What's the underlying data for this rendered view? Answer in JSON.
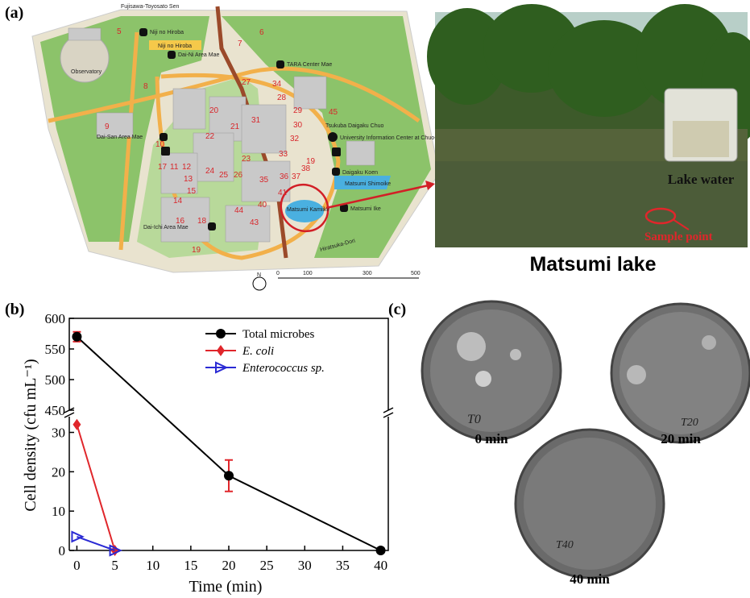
{
  "panel_labels": [
    "(a)",
    "(b)",
    "(c)"
  ],
  "map": {
    "labels": [
      "Fujisawa-Toyosato Sen",
      "Niji no Hiroba",
      "Niji no Hiroba",
      "Dai-Ni Area Mae",
      "TARA Center Mae",
      "Observatory",
      "Tsukuba Daigaku Chuo",
      "University Information Center at Chuo-guchi",
      "Dai-San Area Mae",
      "Daigaku Koen",
      "Matsumi Shimoike",
      "Matsumi Ike",
      "Matsumi Kamiike",
      "Dai-Ichi Area Mae",
      "Hiratsuka-Dori"
    ],
    "building_numbers": [
      "5",
      "6",
      "7",
      "8",
      "9",
      "27",
      "34",
      "28",
      "20",
      "21",
      "31",
      "29",
      "30",
      "45",
      "22",
      "32",
      "19",
      "23",
      "33",
      "38",
      "17",
      "11",
      "12",
      "13",
      "10",
      "24",
      "25",
      "26",
      "35",
      "36",
      "37",
      "14",
      "15",
      "16",
      "18",
      "40",
      "41",
      "44",
      "43",
      "19"
    ],
    "scale_labels": [
      "0",
      "100",
      "300",
      "500"
    ],
    "north": "N"
  },
  "photo": {
    "inset_label": "Lake water",
    "sample_label": "Sample point",
    "caption": "Matsumi lake"
  },
  "chart_data": {
    "type": "line",
    "x_label": "Time (min)",
    "y_label": "Cell density (cfu mL⁻¹)",
    "xlim": [
      -1,
      41
    ],
    "xticks": [
      0,
      5,
      10,
      15,
      20,
      25,
      30,
      35,
      40
    ],
    "ylim": [
      0,
      600
    ],
    "axis_break": [
      34,
      450
    ],
    "yticks": [
      0,
      10,
      20,
      30,
      450,
      500,
      550,
      600
    ],
    "legend": "upper right",
    "series": [
      {
        "name": "Total microbes",
        "color": "#000000",
        "marker": "circle",
        "x": [
          0,
          20,
          40
        ],
        "values": [
          570,
          19,
          0
        ],
        "errors": [
          8,
          4,
          0
        ]
      },
      {
        "name": "E. coli",
        "color": "#e0262b",
        "marker": "diamond",
        "x": [
          0,
          5
        ],
        "values": [
          32,
          0
        ]
      },
      {
        "name": "Enterococcus sp.",
        "color": "#2a2ad4",
        "marker": "triangle",
        "x": [
          0,
          5
        ],
        "values": [
          3.5,
          0
        ]
      }
    ]
  },
  "dishes": [
    {
      "mark": "T0",
      "caption": "0 min"
    },
    {
      "mark": "T20",
      "caption": "20 min"
    },
    {
      "mark": "T40",
      "caption": "40 min"
    }
  ]
}
